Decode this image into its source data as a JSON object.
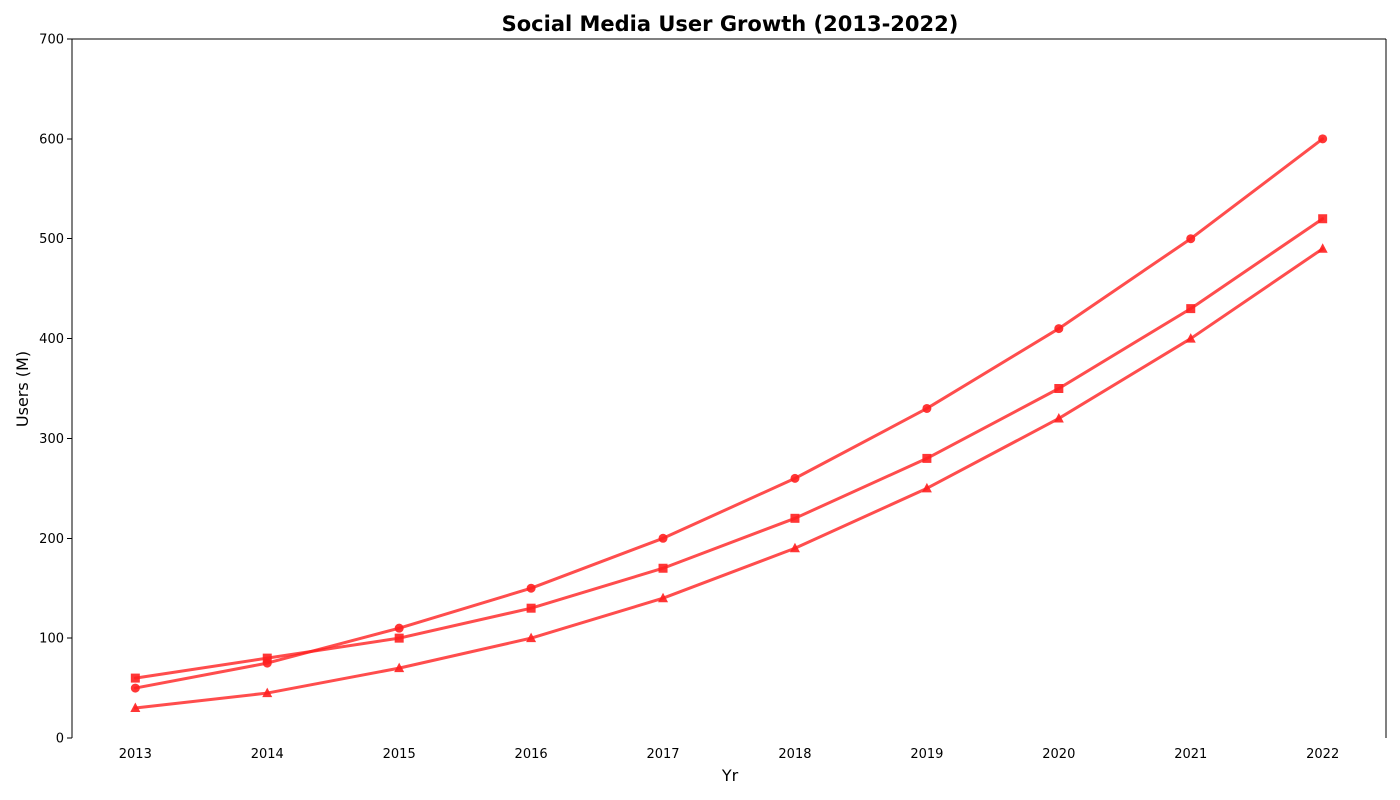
{
  "chart_data": {
    "type": "line",
    "title": "Social Media User Growth (2013-2022)",
    "xlabel": "Yr",
    "ylabel": "Users (M)",
    "x": [
      2013,
      2014,
      2015,
      2016,
      2017,
      2018,
      2019,
      2020,
      2021,
      2022
    ],
    "ylim": [
      0,
      700
    ],
    "yticks": [
      0,
      100,
      200,
      300,
      400,
      500,
      600,
      700
    ],
    "grid": false,
    "legend": "none",
    "series": [
      {
        "marker": "circle",
        "color": "#ff2020",
        "values": [
          50,
          75,
          110,
          150,
          200,
          260,
          330,
          410,
          500,
          600
        ]
      },
      {
        "marker": "square",
        "color": "#ff2020",
        "values": [
          60,
          80,
          100,
          130,
          170,
          220,
          280,
          350,
          430,
          520
        ]
      },
      {
        "marker": "triangle",
        "color": "#ff2020",
        "values": [
          30,
          45,
          70,
          100,
          140,
          190,
          250,
          320,
          400,
          490
        ]
      }
    ]
  }
}
